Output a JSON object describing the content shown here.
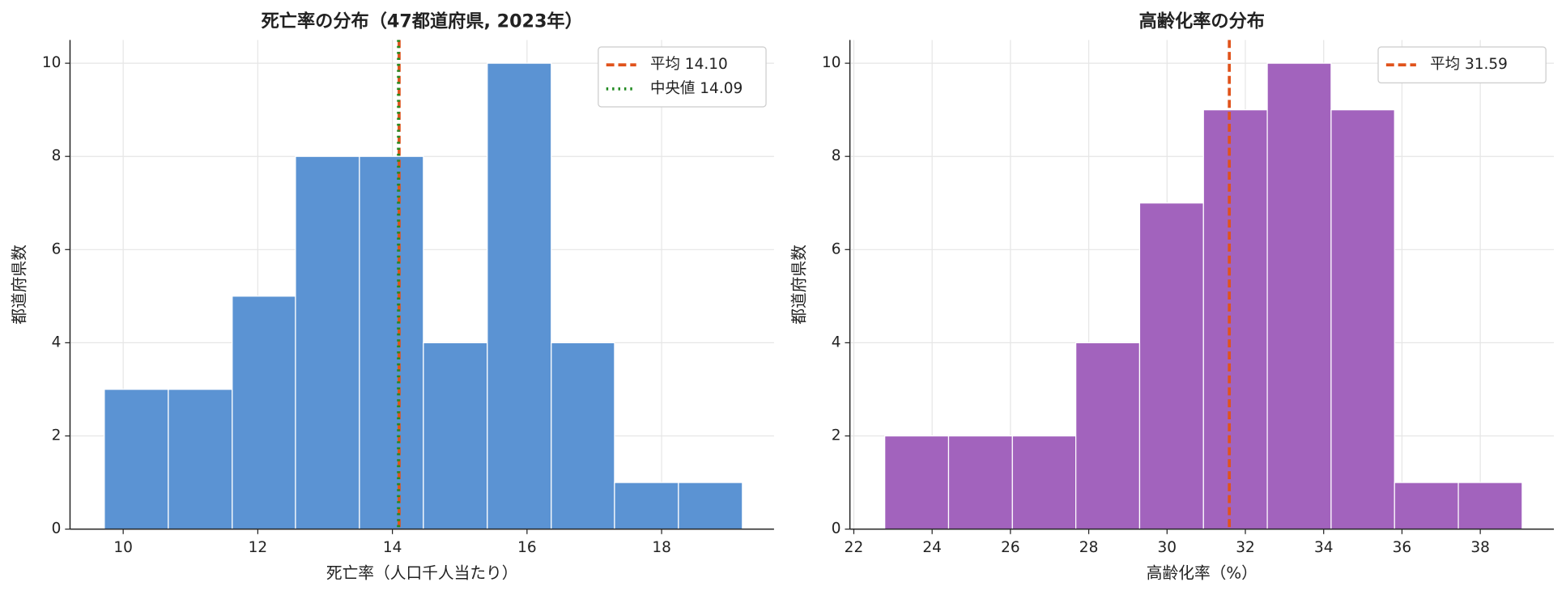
{
  "chart_data": [
    {
      "type": "histogram",
      "title": "死亡率の分布（47都道府県, 2023年）",
      "x_label": "死亡率（人口千人当たり）",
      "y_label": "都道府県数",
      "bins": [
        9.72,
        10.67,
        11.62,
        12.56,
        13.51,
        14.46,
        15.41,
        16.36,
        17.3,
        18.25,
        19.2
      ],
      "values": [
        3,
        3,
        5,
        8,
        8,
        4,
        10,
        4,
        1,
        1
      ],
      "color": "#5b93d3",
      "xlim": [
        9.21,
        19.67
      ],
      "xticks": [
        10,
        12,
        14,
        16,
        18
      ],
      "ylim": [
        0,
        10.5
      ],
      "yticks": [
        0,
        2,
        4,
        6,
        8,
        10
      ],
      "grid": true,
      "legend": "upper right",
      "lines": [
        {
          "label": "平均 14.10",
          "value": 14.1,
          "color": "#e0531c",
          "style": "dashed"
        },
        {
          "label": "中央値 14.09",
          "value": 14.09,
          "color": "#228b22",
          "style": "dotted"
        }
      ]
    },
    {
      "type": "histogram",
      "title": "高齢化率の分布",
      "x_label": "高齢化率（%）",
      "y_label": "都道府県数",
      "bins": [
        22.79,
        24.42,
        26.05,
        27.67,
        29.3,
        30.93,
        32.56,
        34.19,
        35.81,
        37.44,
        39.07
      ],
      "values": [
        2,
        2,
        2,
        4,
        7,
        9,
        10,
        9,
        1,
        1
      ],
      "color": "#a263bd",
      "xlim": [
        21.9,
        39.88
      ],
      "xticks": [
        22,
        24,
        26,
        28,
        30,
        32,
        34,
        36,
        38
      ],
      "ylim": [
        0,
        10.5
      ],
      "yticks": [
        0,
        2,
        4,
        6,
        8,
        10
      ],
      "grid": true,
      "legend": "upper right",
      "lines": [
        {
          "label": "平均 31.59",
          "value": 31.59,
          "color": "#e0531c",
          "style": "dashed"
        }
      ]
    }
  ]
}
